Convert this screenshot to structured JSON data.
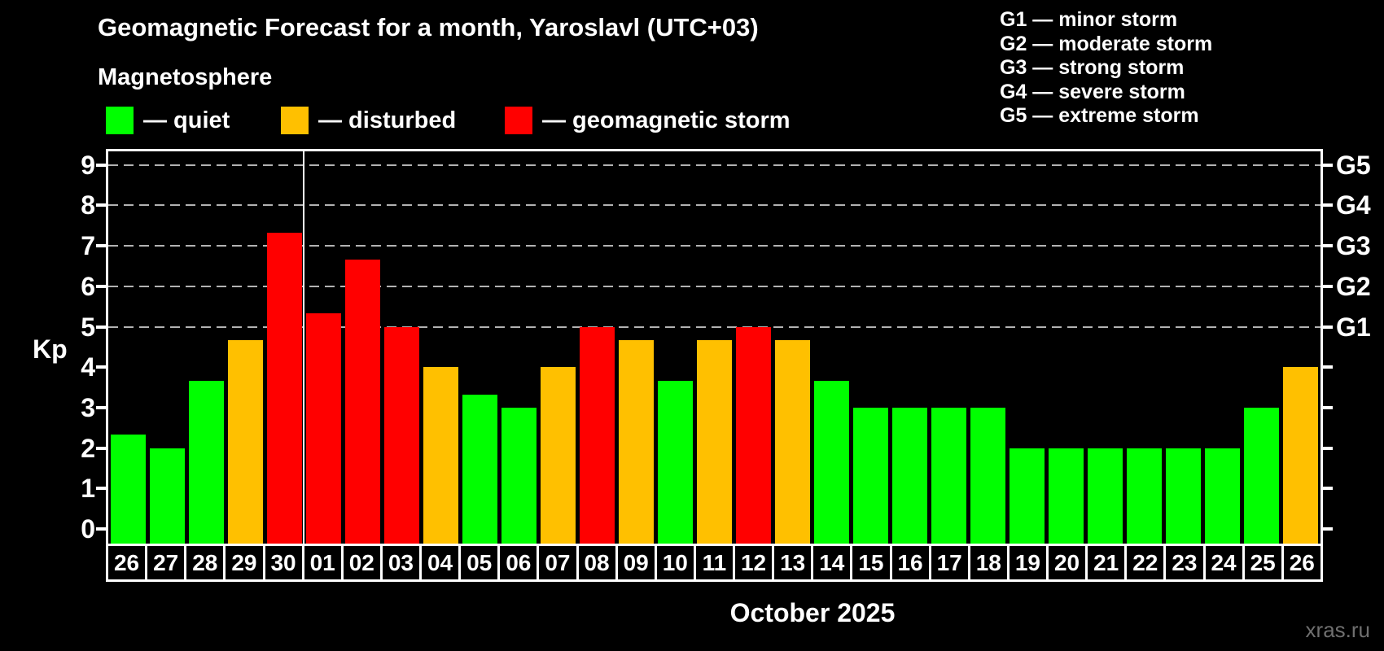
{
  "header": {
    "title": "Geomagnetic Forecast for a month, Yaroslavl (UTC+03)",
    "subtitle": "Magnetosphere"
  },
  "legend": {
    "items": [
      {
        "key": "quiet",
        "label": "— quiet"
      },
      {
        "key": "disturbed",
        "label": "— disturbed"
      },
      {
        "key": "storm",
        "label": "— geomagnetic storm"
      }
    ]
  },
  "g_legend": {
    "items": [
      "G1 — minor storm",
      "G2 — moderate storm",
      "G3 — strong storm",
      "G4 — severe storm",
      "G5 — extreme storm"
    ]
  },
  "colors": {
    "quiet": "#00ff00",
    "disturbed": "#ffc000",
    "storm": "#ff0000",
    "grid": "#b2b2b2",
    "frame": "#ffffff",
    "text": "#ffffff",
    "watermark": "#6f6f6f"
  },
  "axis": {
    "y_label": "Kp",
    "y_ticks": [
      0,
      1,
      2,
      3,
      4,
      5,
      6,
      7,
      8,
      9
    ],
    "x_label": "October 2025"
  },
  "watermark": "xras.ru",
  "chart_data": {
    "type": "bar",
    "title": "Geomagnetic Forecast for a month, Yaroslavl (UTC+03)",
    "xlabel": "October 2025",
    "ylabel": "Kp",
    "ylim": [
      0,
      9
    ],
    "grid": true,
    "grid_levels_kp": [
      5,
      6,
      7,
      8,
      9
    ],
    "right_axis_labels": [
      {
        "kp": 5,
        "label": "G1"
      },
      {
        "kp": 6,
        "label": "G2"
      },
      {
        "kp": 7,
        "label": "G3"
      },
      {
        "kp": 8,
        "label": "G4"
      },
      {
        "kp": 9,
        "label": "G5"
      }
    ],
    "month_boundary_after_index": 4,
    "legend_position": "top",
    "categories": [
      "26",
      "27",
      "28",
      "29",
      "30",
      "01",
      "02",
      "03",
      "04",
      "05",
      "06",
      "07",
      "08",
      "09",
      "10",
      "11",
      "12",
      "13",
      "14",
      "15",
      "16",
      "17",
      "18",
      "19",
      "20",
      "21",
      "22",
      "23",
      "24",
      "25",
      "26"
    ],
    "values": [
      2.33,
      2,
      3.67,
      4.67,
      7.33,
      5.33,
      6.67,
      5,
      4,
      3.33,
      3,
      4,
      5,
      4.67,
      3.67,
      4.67,
      5,
      4.67,
      3.67,
      3,
      3,
      3,
      3,
      2,
      2,
      2,
      2,
      2,
      2,
      3,
      4
    ],
    "statuses": [
      "quiet",
      "quiet",
      "quiet",
      "disturbed",
      "storm",
      "storm",
      "storm",
      "storm",
      "disturbed",
      "quiet",
      "quiet",
      "disturbed",
      "storm",
      "disturbed",
      "quiet",
      "disturbed",
      "storm",
      "disturbed",
      "quiet",
      "quiet",
      "quiet",
      "quiet",
      "quiet",
      "quiet",
      "quiet",
      "quiet",
      "quiet",
      "quiet",
      "quiet",
      "quiet",
      "disturbed"
    ]
  }
}
